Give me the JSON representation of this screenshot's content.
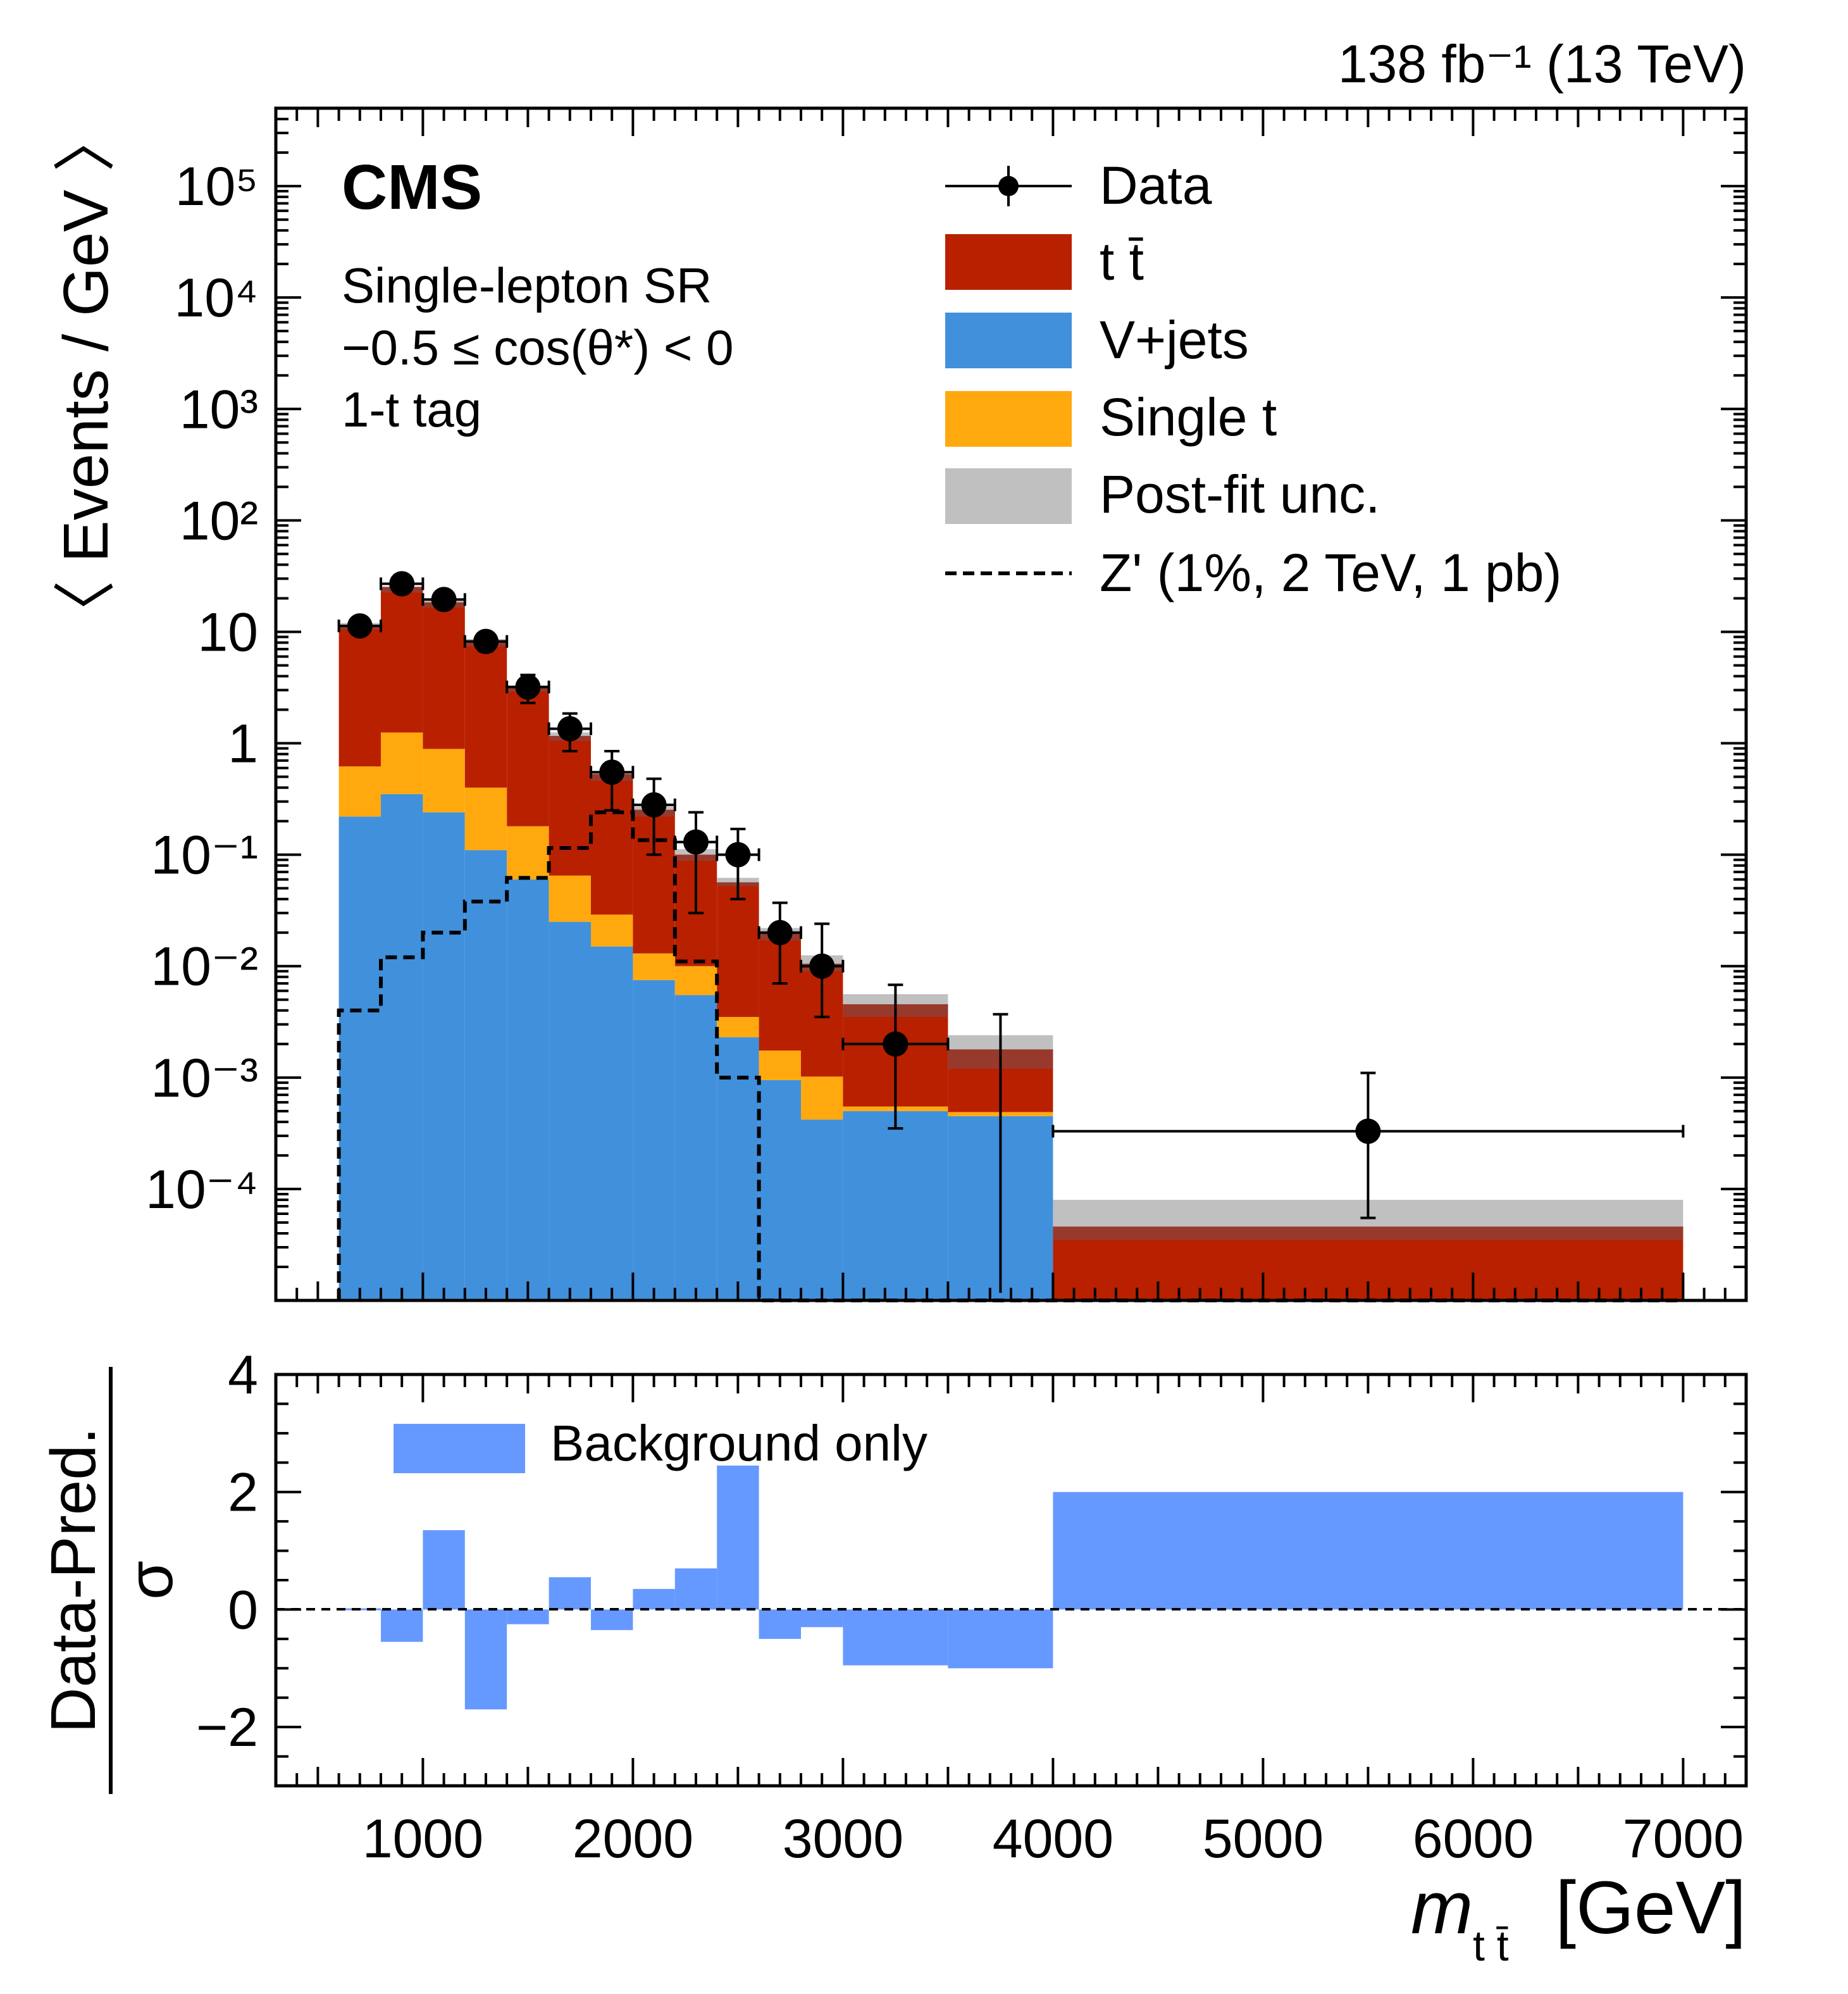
{
  "lumi_label": "138 fb⁻¹ (13 TeV)",
  "experiment": "CMS",
  "region_lines": [
    "Single-lepton SR",
    "−0.5 ≤ cos(θ*) < 0",
    "1-t tag"
  ],
  "colors": {
    "ttbar": "#b92000",
    "vjets": "#4190dc",
    "single_t": "#ffa90e",
    "unc": "#c0c0c0",
    "unc_overlap": "#973a2c",
    "ratio_fill": "#6699ff",
    "data": "#000000"
  },
  "legend": {
    "data": "Data",
    "ttbar": "t t̄",
    "vjets": "V+jets",
    "single_t": "Single t",
    "unc": "Post-fit unc.",
    "signal": "Z' (1%, 2 TeV, 1 pb)"
  },
  "ratio_legend": "Background only",
  "x_axis": {
    "label_main": "m",
    "label_sub": "t t̄",
    "label_unit": "[GeV]",
    "ticks": [
      "1000",
      "2000",
      "3000",
      "4000",
      "5000",
      "6000",
      "7000"
    ],
    "tick_values": [
      1000,
      2000,
      3000,
      4000,
      5000,
      6000,
      7000
    ],
    "range": [
      300,
      7300
    ]
  },
  "top_y_axis": {
    "label": "〈 Events / GeV 〉",
    "scale": "log",
    "range": [
      1e-05,
      500000.0
    ],
    "tick_labels": [
      "10⁻⁴",
      "10⁻³",
      "10⁻²",
      "10⁻¹",
      "1",
      "10",
      "10²",
      "10³",
      "10⁴",
      "10⁵"
    ],
    "tick_values": [
      0.0001,
      0.001,
      0.01,
      0.1,
      1,
      10,
      100,
      1000,
      10000,
      100000
    ]
  },
  "ratio_y_axis": {
    "label_num": "Data-Pred.",
    "label_den": "σ",
    "range": [
      -3,
      4
    ],
    "tick_labels": [
      "−2",
      "0",
      "2",
      "4"
    ],
    "tick_values": [
      -2,
      0,
      2,
      4
    ]
  },
  "chart_data": {
    "type": "bar",
    "bin_edges": [
      600,
      800,
      1000,
      1200,
      1400,
      1600,
      1800,
      2000,
      2200,
      2400,
      2600,
      2800,
      3000,
      3500,
      4000,
      7000
    ],
    "series": [
      {
        "name": "V+jets",
        "values": [
          0.22,
          0.35,
          0.24,
          0.11,
          0.06,
          0.025,
          0.015,
          0.0075,
          0.0055,
          0.0023,
          0.00095,
          0.00042,
          0.0005,
          0.00045,
          1.2e-06
        ]
      },
      {
        "name": "Single t",
        "values": [
          0.4,
          0.9,
          0.65,
          0.29,
          0.12,
          0.04,
          0.014,
          0.0055,
          0.0045,
          0.0012,
          0.0008,
          0.0006,
          5e-05,
          4e-05,
          3e-07
        ]
      },
      {
        "name": "t t̄",
        "values": [
          10.8,
          24,
          17.5,
          7.8,
          3.0,
          1.1,
          0.5,
          0.24,
          0.09,
          0.053,
          0.018,
          0.0095,
          0.004,
          0.0013,
          4.45e-05
        ]
      },
      {
        "name": "Post-fit unc.",
        "up": [
          12,
          25.5,
          19,
          8.6,
          3.3,
          1.25,
          0.56,
          0.27,
          0.112,
          0.062,
          0.022,
          0.0125,
          0.0056,
          0.0024,
          8e-05
        ],
        "down": [
          10.5,
          22.5,
          16.5,
          7.4,
          2.9,
          1.05,
          0.46,
          0.22,
          0.088,
          0.052,
          0.017,
          0.009,
          0.0035,
          0.0012,
          3.5e-05
        ]
      },
      {
        "name": "Z' (1%, 2 TeV, 1 pb)",
        "values": [
          0.004,
          0.012,
          0.02,
          0.038,
          0.062,
          0.115,
          0.24,
          0.135,
          0.011,
          0.001,
          1.2e-06,
          1.2e-06,
          1.2e-06,
          1.2e-06,
          1.2e-06
        ]
      },
      {
        "name": "Data",
        "x": [
          700,
          900,
          1100,
          1300,
          1500,
          1700,
          1900,
          2100,
          2300,
          2500,
          2700,
          2900,
          3250,
          5500
        ],
        "values": [
          11.3,
          27,
          19.5,
          8.2,
          3.2,
          1.35,
          0.55,
          0.28,
          0.13,
          0.1,
          0.02,
          0.01,
          0.002,
          0.00033
        ],
        "err_low": [
          1.5,
          3,
          2.5,
          1.5,
          0.9,
          0.5,
          0.3,
          0.18,
          0.1,
          0.06,
          0.013,
          0.0065,
          0.00165,
          0.000275
        ],
        "err_high": [
          1.5,
          3,
          2.5,
          1.5,
          0.9,
          0.5,
          0.3,
          0.2,
          0.11,
          0.07,
          0.017,
          0.014,
          0.0048,
          0.00077
        ],
        "xerr": [
          100,
          100,
          100,
          100,
          100,
          100,
          100,
          100,
          100,
          100,
          100,
          100,
          250,
          1500
        ]
      },
      {
        "name": "Background only",
        "values": [
          0.02,
          -0.55,
          1.35,
          -1.7,
          -0.25,
          0.55,
          -0.35,
          0.35,
          0.7,
          2.45,
          -0.5,
          -0.3,
          -0.95,
          -1.0,
          2.0
        ]
      }
    ],
    "up_limit_edge": {
      "x": 3750,
      "value_high": 0.0037
    }
  }
}
